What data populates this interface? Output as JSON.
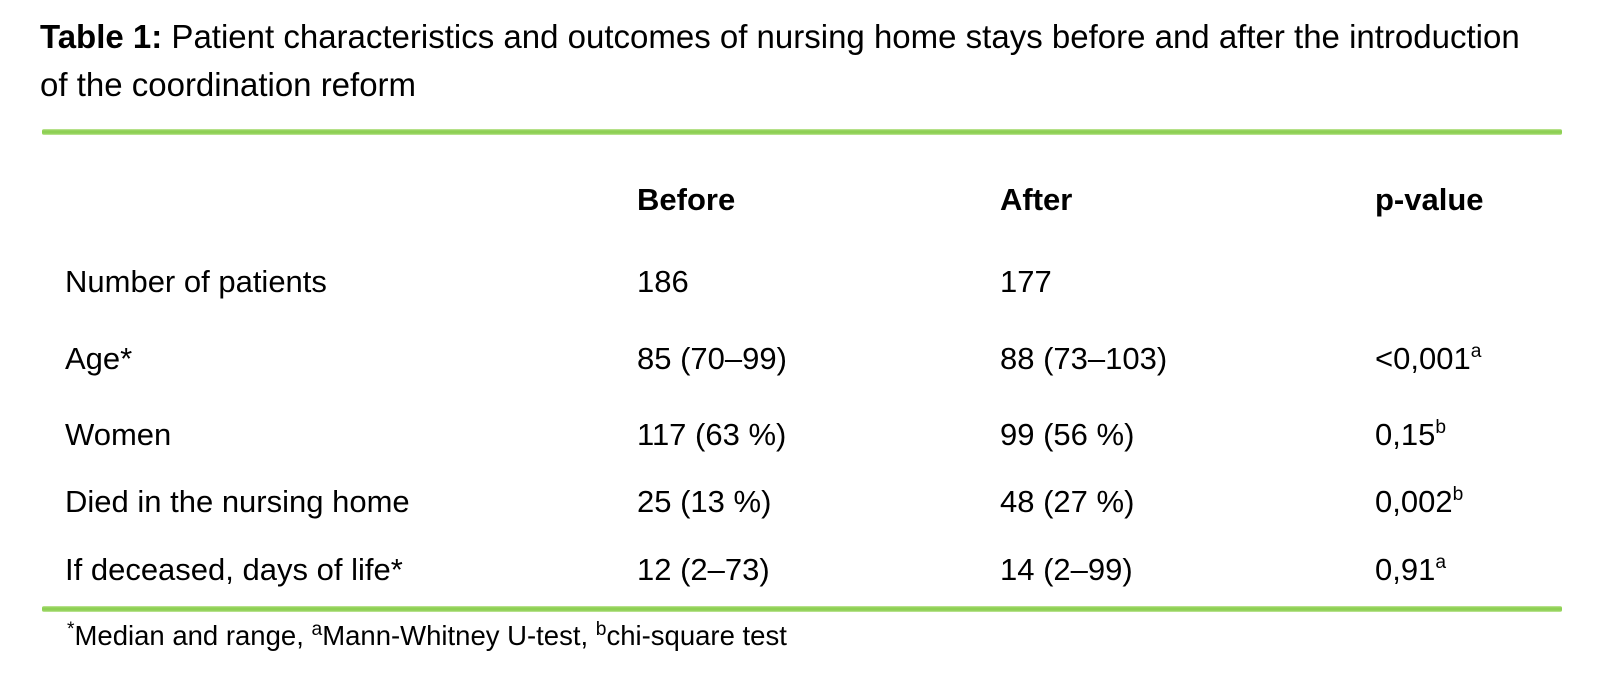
{
  "title": {
    "label": "Table 1:",
    "text": " Patient characteristics and outcomes of nursing home stays before and after the introduction of the coordination reform"
  },
  "table": {
    "columns": [
      "",
      "Before",
      "After",
      "p-value"
    ],
    "rows": [
      {
        "label": "Number of patients",
        "before": "186",
        "after": "177",
        "p": "",
        "p_sup": ""
      },
      {
        "label": "Age*",
        "before": "85 (70–99)",
        "after": "88 (73–103)",
        "p": "<0,001",
        "p_sup": "a"
      },
      {
        "label": "Women",
        "before": "117 (63 %)",
        "after": "99 (56 %)",
        "p": "0,15",
        "p_sup": "b"
      },
      {
        "label": "Died in the nursing home",
        "before": "25 (13 %)",
        "after": "48 (27 %)",
        "p": "0,002",
        "p_sup": "b"
      },
      {
        "label": "If deceased, days of life*",
        "before": "12 (2–73)",
        "after": "14 (2–99)",
        "p": "0,91",
        "p_sup": "a"
      }
    ]
  },
  "footnote": {
    "parts": [
      {
        "sup": "*"
      },
      {
        "text": "Median and range, "
      },
      {
        "sup": "a"
      },
      {
        "text": "Mann-Whitney U-test, "
      },
      {
        "sup": "b"
      },
      {
        "text": "chi-square test"
      }
    ]
  },
  "colors": {
    "accent_green": "#92d050",
    "text": "#000000",
    "background": "#ffffff"
  }
}
